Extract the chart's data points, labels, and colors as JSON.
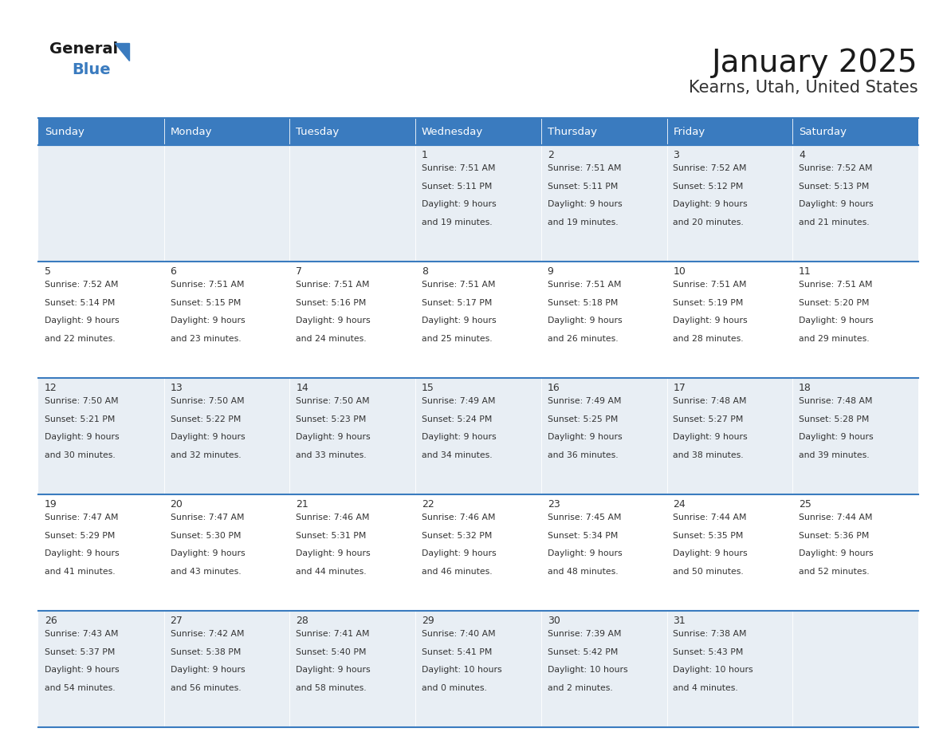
{
  "title": "January 2025",
  "subtitle": "Kearns, Utah, United States",
  "header_color": "#3a7bbf",
  "header_text_color": "#ffffff",
  "day_names": [
    "Sunday",
    "Monday",
    "Tuesday",
    "Wednesday",
    "Thursday",
    "Friday",
    "Saturday"
  ],
  "weeks": [
    [
      {
        "day": "",
        "sunrise": "",
        "sunset": "",
        "daylight": ""
      },
      {
        "day": "",
        "sunrise": "",
        "sunset": "",
        "daylight": ""
      },
      {
        "day": "",
        "sunrise": "",
        "sunset": "",
        "daylight": ""
      },
      {
        "day": "1",
        "sunrise": "7:51 AM",
        "sunset": "5:11 PM",
        "daylight": "9 hours and 19 minutes."
      },
      {
        "day": "2",
        "sunrise": "7:51 AM",
        "sunset": "5:11 PM",
        "daylight": "9 hours and 19 minutes."
      },
      {
        "day": "3",
        "sunrise": "7:52 AM",
        "sunset": "5:12 PM",
        "daylight": "9 hours and 20 minutes."
      },
      {
        "day": "4",
        "sunrise": "7:52 AM",
        "sunset": "5:13 PM",
        "daylight": "9 hours and 21 minutes."
      }
    ],
    [
      {
        "day": "5",
        "sunrise": "7:52 AM",
        "sunset": "5:14 PM",
        "daylight": "9 hours and 22 minutes."
      },
      {
        "day": "6",
        "sunrise": "7:51 AM",
        "sunset": "5:15 PM",
        "daylight": "9 hours and 23 minutes."
      },
      {
        "day": "7",
        "sunrise": "7:51 AM",
        "sunset": "5:16 PM",
        "daylight": "9 hours and 24 minutes."
      },
      {
        "day": "8",
        "sunrise": "7:51 AM",
        "sunset": "5:17 PM",
        "daylight": "9 hours and 25 minutes."
      },
      {
        "day": "9",
        "sunrise": "7:51 AM",
        "sunset": "5:18 PM",
        "daylight": "9 hours and 26 minutes."
      },
      {
        "day": "10",
        "sunrise": "7:51 AM",
        "sunset": "5:19 PM",
        "daylight": "9 hours and 28 minutes."
      },
      {
        "day": "11",
        "sunrise": "7:51 AM",
        "sunset": "5:20 PM",
        "daylight": "9 hours and 29 minutes."
      }
    ],
    [
      {
        "day": "12",
        "sunrise": "7:50 AM",
        "sunset": "5:21 PM",
        "daylight": "9 hours and 30 minutes."
      },
      {
        "day": "13",
        "sunrise": "7:50 AM",
        "sunset": "5:22 PM",
        "daylight": "9 hours and 32 minutes."
      },
      {
        "day": "14",
        "sunrise": "7:50 AM",
        "sunset": "5:23 PM",
        "daylight": "9 hours and 33 minutes."
      },
      {
        "day": "15",
        "sunrise": "7:49 AM",
        "sunset": "5:24 PM",
        "daylight": "9 hours and 34 minutes."
      },
      {
        "day": "16",
        "sunrise": "7:49 AM",
        "sunset": "5:25 PM",
        "daylight": "9 hours and 36 minutes."
      },
      {
        "day": "17",
        "sunrise": "7:48 AM",
        "sunset": "5:27 PM",
        "daylight": "9 hours and 38 minutes."
      },
      {
        "day": "18",
        "sunrise": "7:48 AM",
        "sunset": "5:28 PM",
        "daylight": "9 hours and 39 minutes."
      }
    ],
    [
      {
        "day": "19",
        "sunrise": "7:47 AM",
        "sunset": "5:29 PM",
        "daylight": "9 hours and 41 minutes."
      },
      {
        "day": "20",
        "sunrise": "7:47 AM",
        "sunset": "5:30 PM",
        "daylight": "9 hours and 43 minutes."
      },
      {
        "day": "21",
        "sunrise": "7:46 AM",
        "sunset": "5:31 PM",
        "daylight": "9 hours and 44 minutes."
      },
      {
        "day": "22",
        "sunrise": "7:46 AM",
        "sunset": "5:32 PM",
        "daylight": "9 hours and 46 minutes."
      },
      {
        "day": "23",
        "sunrise": "7:45 AM",
        "sunset": "5:34 PM",
        "daylight": "9 hours and 48 minutes."
      },
      {
        "day": "24",
        "sunrise": "7:44 AM",
        "sunset": "5:35 PM",
        "daylight": "9 hours and 50 minutes."
      },
      {
        "day": "25",
        "sunrise": "7:44 AM",
        "sunset": "5:36 PM",
        "daylight": "9 hours and 52 minutes."
      }
    ],
    [
      {
        "day": "26",
        "sunrise": "7:43 AM",
        "sunset": "5:37 PM",
        "daylight": "9 hours and 54 minutes."
      },
      {
        "day": "27",
        "sunrise": "7:42 AM",
        "sunset": "5:38 PM",
        "daylight": "9 hours and 56 minutes."
      },
      {
        "day": "28",
        "sunrise": "7:41 AM",
        "sunset": "5:40 PM",
        "daylight": "9 hours and 58 minutes."
      },
      {
        "day": "29",
        "sunrise": "7:40 AM",
        "sunset": "5:41 PM",
        "daylight": "10 hours and 0 minutes."
      },
      {
        "day": "30",
        "sunrise": "7:39 AM",
        "sunset": "5:42 PM",
        "daylight": "10 hours and 2 minutes."
      },
      {
        "day": "31",
        "sunrise": "7:38 AM",
        "sunset": "5:43 PM",
        "daylight": "10 hours and 4 minutes."
      },
      {
        "day": "",
        "sunrise": "",
        "sunset": "",
        "daylight": ""
      }
    ]
  ],
  "cell_bg_light": "#e8eef4",
  "cell_bg_white": "#ffffff",
  "text_color": "#333333",
  "grid_color": "#3a7bbf",
  "title_fontsize": 28,
  "subtitle_fontsize": 15,
  "day_number_fontsize": 9,
  "info_fontsize": 7.8,
  "header_fontsize": 9.5
}
